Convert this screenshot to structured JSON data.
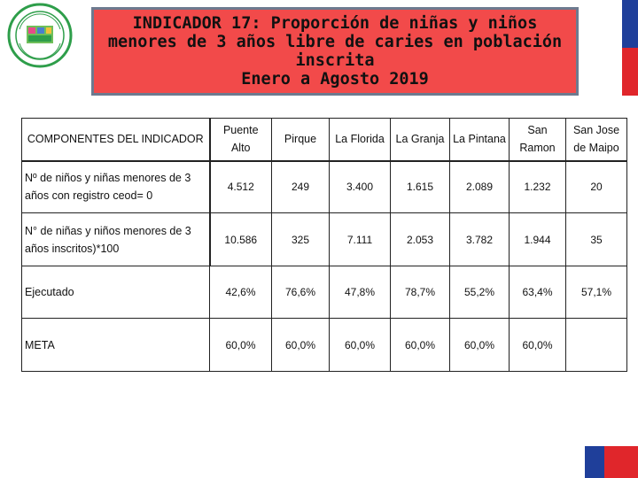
{
  "title": {
    "line1": "INDICADOR 17: Proporción de niñas y niños",
    "line2": "menores de 3 años libre de caries en población",
    "line3": "inscrita",
    "line4": "Enero a Agosto 2019"
  },
  "logo": {
    "icon": "green-circular-seal-logo",
    "text": "Servicio de Salud Metropolitano Sur Oriente"
  },
  "colors": {
    "title_bg": "#f24a4a",
    "title_border": "#6d7a8f",
    "flag_blue": "#1f3f9a",
    "flag_red": "#e0262b"
  },
  "table": {
    "header_label": "COMPONENTES DEL INDICADOR",
    "columns": [
      [
        "Puente",
        "Alto"
      ],
      [
        "Pirque"
      ],
      [
        "La Florida"
      ],
      [
        "La Granja"
      ],
      [
        "La Pintana"
      ],
      [
        "San Ramon"
      ],
      [
        "San Jose",
        "de Maipo"
      ]
    ],
    "rows": [
      {
        "label": [
          "Nº de niños y niñas menores de 3",
          "años con registro ceod= 0"
        ],
        "values": [
          "4.512",
          "249",
          "3.400",
          "1.615",
          "2.089",
          "1.232",
          "20"
        ]
      },
      {
        "label": [
          "N° de niñas y niños menores de 3",
          "años inscritos)*100"
        ],
        "values": [
          "10.586",
          "325",
          "7.111",
          "2.053",
          "3.782",
          "1.944",
          "35"
        ]
      },
      {
        "label": [
          "Ejecutado"
        ],
        "values": [
          "42,6%",
          "76,6%",
          "47,8%",
          "78,7%",
          "55,2%",
          "63,4%",
          "57,1%"
        ]
      },
      {
        "label": [
          "META"
        ],
        "values": [
          "60,0%",
          "60,0%",
          "60,0%",
          "60,0%",
          "60,0%",
          "60,0%",
          ""
        ]
      }
    ]
  }
}
